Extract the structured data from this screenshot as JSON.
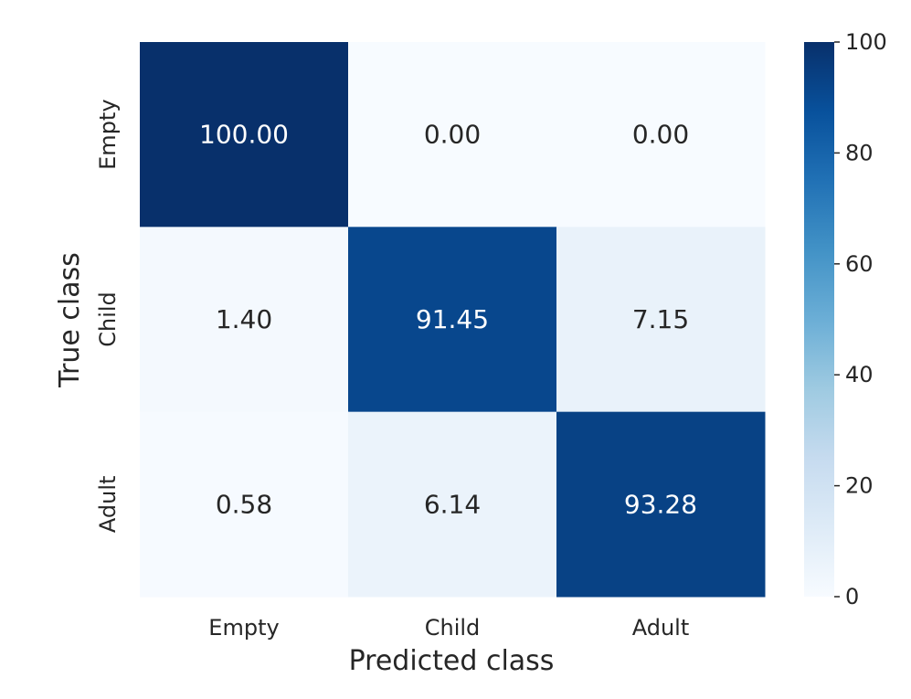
{
  "chart_data": {
    "type": "heatmap",
    "xlabel": "Predicted class",
    "ylabel": "True class",
    "x_categories": [
      "Empty",
      "Child",
      "Adult"
    ],
    "y_categories": [
      "Empty",
      "Child",
      "Adult"
    ],
    "cell_format": "2 decimals",
    "values": [
      [
        100.0,
        0.0,
        0.0
      ],
      [
        1.4,
        91.45,
        7.15
      ],
      [
        0.58,
        6.14,
        93.28
      ]
    ],
    "cell_labels": [
      [
        "100.00",
        "0.00",
        "0.00"
      ],
      [
        "1.40",
        "91.45",
        "7.15"
      ],
      [
        "0.58",
        "6.14",
        "93.28"
      ]
    ],
    "colorbar": {
      "range": [
        0,
        100
      ],
      "ticks": [
        "0",
        "20",
        "40",
        "60",
        "80",
        "100"
      ],
      "colormap": "Blues",
      "low_color": "#f7fbff",
      "high_color": "#08306b"
    },
    "grid": false
  }
}
